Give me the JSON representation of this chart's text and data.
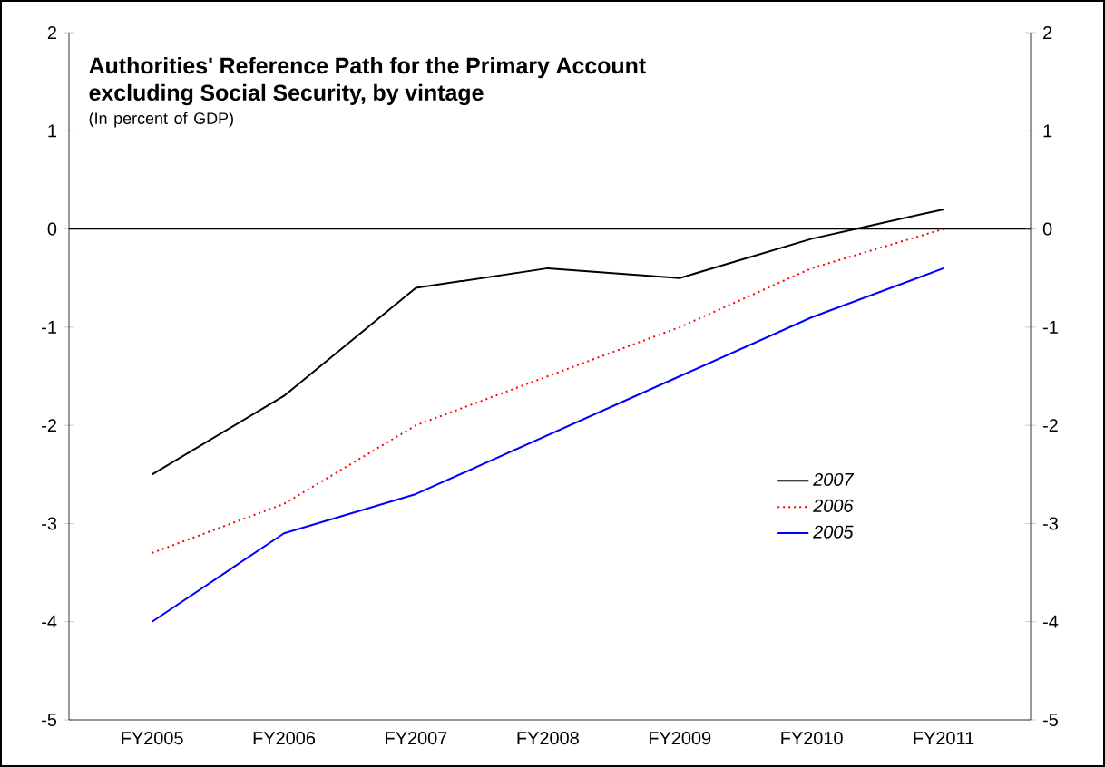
{
  "chart_data": {
    "type": "line",
    "title": "Authorities' Reference Path for the Primary Account excluding Social Security, by vintage",
    "subtitle": "(In percent of GDP)",
    "categories": [
      "FY2005",
      "FY2006",
      "FY2007",
      "FY2008",
      "FY2009",
      "FY2010",
      "FY2011"
    ],
    "series": [
      {
        "name": "2007",
        "color": "#000000",
        "line_style": "solid",
        "values": [
          -2.5,
          -1.7,
          -0.6,
          -0.4,
          -0.5,
          -0.1,
          0.2
        ]
      },
      {
        "name": "2006",
        "color": "#ff0000",
        "line_style": "dotted",
        "values": [
          -3.3,
          -2.8,
          -2.0,
          -1.5,
          -1.0,
          -0.4,
          0.0
        ]
      },
      {
        "name": "2005",
        "color": "#0000ff",
        "line_style": "solid",
        "values": [
          -4.0,
          -3.1,
          -2.7,
          -2.1,
          -1.5,
          -0.9,
          -0.4
        ]
      }
    ],
    "ylim": [
      -5,
      2
    ],
    "yticks": [
      -5,
      -4,
      -3,
      -2,
      -1,
      0,
      1,
      2
    ],
    "y2lim": [
      -5,
      2
    ],
    "y2ticks": [
      -5,
      -4,
      -3,
      -2,
      -1,
      0,
      1,
      2
    ],
    "ref_lines": [
      {
        "axis": "y",
        "value": 0,
        "color": "#000000"
      }
    ],
    "legend": "right",
    "grid": false,
    "marker": "none"
  }
}
